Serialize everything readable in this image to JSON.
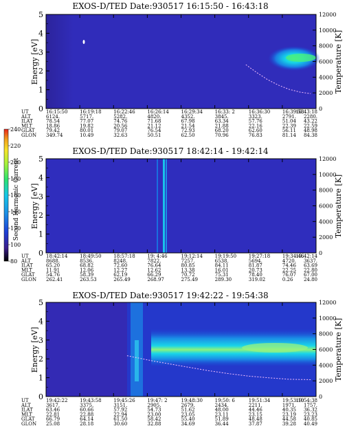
{
  "chart_data": {
    "type": "heatmap",
    "colorbar": {
      "label": "Second Harmonic Current",
      "ticks": [
        "80",
        "100",
        "120",
        "140",
        "160",
        "180",
        "200",
        "220",
        "240"
      ],
      "colors": [
        "#000000",
        "#3b1e8c",
        "#1d3fd6",
        "#1d8fe6",
        "#15c7e8",
        "#2de36e",
        "#a8f23a",
        "#f6e52b",
        "#f2a41d",
        "#e8251c"
      ]
    },
    "panels": [
      {
        "title": "EXOS-D/TED   Date:930517   16:15:50 - 16:43:18",
        "ylabel": "Energy [eV]",
        "y2label": "Temperature [K]",
        "yticks": [
          "0",
          "1",
          "2",
          "3",
          "4",
          "5"
        ],
        "y2ticks": [
          "0",
          "2000",
          "4000",
          "6000",
          "8000",
          "10000",
          "12000"
        ],
        "ylim": [
          0,
          5
        ],
        "y2lim": [
          0,
          12000
        ],
        "row_labels": [
          "UT",
          "ALT",
          "ILAT",
          "MLT",
          "GLAT",
          "GLON"
        ],
        "columns": [
          [
            "16:15:50",
            "6124.",
            "78.54",
            "18.86",
            "79.42",
            "349.74"
          ],
          [
            "16:19:18",
            "5717.",
            "77.07",
            "19.82",
            "80.01",
            "10.49"
          ],
          [
            "16:22:46",
            "5282.",
            "74.76",
            "20.56",
            "79.07",
            "32.63"
          ],
          [
            "16:26:14",
            "4820.",
            "71.68",
            "21.12",
            "76.54",
            "50.51"
          ],
          [
            "16:29:34",
            "4352.",
            "67.98",
            "21.54",
            "72.93",
            "62.50"
          ],
          [
            "16:33: 2",
            "3845.",
            "63.34",
            "21.88",
            "68.20",
            "70.96"
          ],
          [
            "16:36:30",
            "3323.",
            "57.76",
            "22.16",
            "62.60",
            "76.83"
          ],
          [
            "16:39:58",
            "2791.",
            "51.04",
            "22.39",
            "56.11",
            "81.14"
          ],
          [
            "16:43:18",
            "2280.",
            "43.22",
            "22.59",
            "48.98",
            "84.38"
          ]
        ],
        "temperature_curve": {
          "x": [
            0.74,
            0.78,
            0.82,
            0.86,
            0.9,
            0.94,
            0.98
          ],
          "temperature_K": [
            5600,
            4600,
            3700,
            3000,
            2450,
            2100,
            1900
          ]
        }
      },
      {
        "title": "EXOS-D/TED   Date:930517   18:42:14 - 19:42:14",
        "ylabel": "Energy [eV]",
        "y2label": "Temperature [K]",
        "yticks": [
          "0",
          "1",
          "2",
          "3",
          "4",
          "5"
        ],
        "y2ticks": [
          "0",
          "2000",
          "4000",
          "6000",
          "8000",
          "10000",
          "12000"
        ],
        "ylim": [
          0,
          5
        ],
        "y2lim": [
          0,
          12000
        ],
        "row_labels": [
          "UT",
          "ALT",
          "ILAT",
          "MLT",
          "GLAT",
          "GLON"
        ],
        "columns": [
          [
            "18:42:14",
            "8688.",
            "65.20",
            "11.91",
            "54.76",
            "262.41"
          ],
          [
            "18:49:50",
            "8536.",
            "68.82",
            "12.06",
            "58.39",
            "263.53"
          ],
          [
            "18:57:18",
            "8248.",
            "72.60",
            "12.27",
            "62.19",
            "265.49"
          ],
          [
            "19: 4:46",
            "7822.",
            "76.64",
            "12.62",
            "66.29",
            "268.97"
          ],
          [
            "19:12:14",
            "7257.",
            "80.85",
            "13.38",
            "70.72",
            "275.49"
          ],
          [
            "19:19:50",
            "6538.",
            "84.11",
            "16.01",
            "75.31",
            "289.30"
          ],
          [
            "19:27:18",
            "5694.",
            "81.87",
            "20.73",
            "78.40",
            "319.02"
          ],
          [
            "19:34:46",
            "4720.",
            "74.46",
            "22.25",
            "76.07",
            "0.26"
          ],
          [
            "19:42:14",
            "3637.",
            "63.69",
            "22.80",
            "67.00",
            "24.80"
          ]
        ]
      },
      {
        "title": "EXOS-D/TED   Date:930517   19:42:22 - 19:54:38",
        "ylabel": "Energy [eV]",
        "y2label": "Temperature [K]",
        "yticks": [
          "0",
          "1",
          "2",
          "3",
          "4",
          "5"
        ],
        "y2ticks": [
          "0",
          "2000",
          "4000",
          "6000",
          "8000",
          "10000",
          "12000"
        ],
        "ylim": [
          0,
          5
        ],
        "y2lim": [
          0,
          12000
        ],
        "row_labels": [
          "UT",
          "ALT",
          "ILAT",
          "MLT",
          "GLAT",
          "GLON"
        ],
        "columns": [
          [
            "19:42:22",
            "3617.",
            "63.46",
            "22.81",
            "66.79",
            "25.08"
          ],
          [
            "19:43:58",
            "3375.",
            "60.66",
            "22.88",
            "64.14",
            "28.18"
          ],
          [
            "19:45:26",
            "3151.",
            "57.92",
            "22.94",
            "61.50",
            "30.60"
          ],
          [
            "19:47: 2",
            "2905.",
            "54.73",
            "23.00",
            "58.42",
            "32.88"
          ],
          [
            "19:48:30",
            "2679.",
            "51.62",
            "23.05",
            "55.40",
            "34.69"
          ],
          [
            "19:50: 6",
            "2434.",
            "48.00",
            "23.11",
            "51.89",
            "36.44"
          ],
          [
            "19:51:34",
            "2211.",
            "44.46",
            "23.15",
            "48.48",
            "37.87"
          ],
          [
            "19:53:10",
            "1971.",
            "40.35",
            "23.19",
            "44.58",
            "39.28"
          ],
          [
            "19:54:38",
            "1757.",
            "36.32",
            "23.23",
            "40.85",
            "40.49"
          ]
        ],
        "temperature_curve": {
          "x": [
            0.3,
            0.4,
            0.5,
            0.6,
            0.68,
            0.75,
            0.82,
            0.9,
            0.98
          ],
          "temperature_K": [
            5200,
            4500,
            3900,
            3300,
            2900,
            2600,
            2400,
            2200,
            2150
          ]
        }
      }
    ]
  }
}
